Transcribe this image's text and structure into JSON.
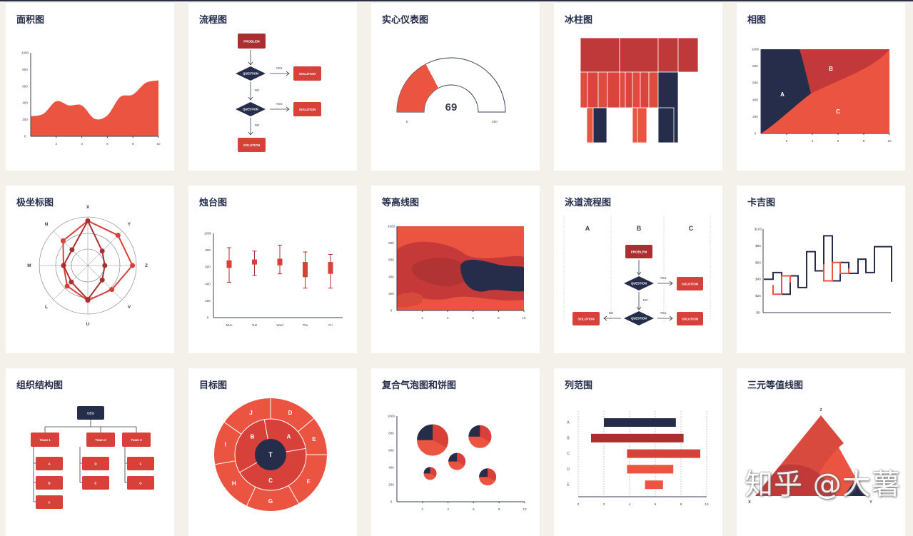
{
  "colors": {
    "red": "#ea5440",
    "dark_red": "#a92f31",
    "mid_red": "#d8403a",
    "navy": "#252d4a",
    "background": "#f4f0ea"
  },
  "cards": [
    {
      "title": "面积图",
      "chart": {
        "type": "area",
        "x_ticks": [
          "2",
          "4",
          "6",
          "8",
          "10"
        ],
        "y_ticks": [
          "0",
          "200",
          "400",
          "600",
          "800",
          "1000"
        ],
        "x": [
          0,
          1,
          2,
          3,
          4,
          5,
          6,
          7,
          8,
          9,
          10
        ],
        "values": [
          240,
          270,
          420,
          370,
          370,
          210,
          250,
          470,
          500,
          640,
          670
        ]
      }
    },
    {
      "title": "流程图",
      "nodes": {
        "problem": "PROBLEM",
        "question1": "QUESTION",
        "question2": "QUESTION",
        "solution1": "SOLUTION",
        "solution2": "SOLUTION",
        "solution3": "SOLUTION"
      },
      "edges": {
        "yes1": "YES",
        "no1": "NO",
        "yes2": "YES",
        "no2": "NO"
      }
    },
    {
      "title": "实心仪表图",
      "chart": {
        "type": "gauge",
        "value": "69",
        "min": "0",
        "max": "200"
      }
    },
    {
      "title": "冰柱图"
    },
    {
      "title": "相图",
      "chart": {
        "type": "phase",
        "x_ticks": [
          "2",
          "4",
          "6",
          "8",
          "10"
        ],
        "y_ticks": [
          "0",
          "200",
          "400",
          "600",
          "800",
          "1000"
        ],
        "regions": [
          "A",
          "B",
          "C"
        ]
      }
    },
    {
      "title": "极坐标图",
      "chart": {
        "type": "polar",
        "axes": [
          "X",
          "Y",
          "Z",
          "V",
          "U",
          "L",
          "M",
          "N"
        ],
        "series_outer": [
          0.92,
          0.88,
          0.92,
          0.7,
          0.72,
          0.6,
          0.5,
          0.72
        ],
        "series_inner": [
          0.92,
          0.42,
          0.35,
          0.42,
          0.7,
          0.48,
          0.5,
          0.46
        ]
      }
    },
    {
      "title": "烛台图",
      "chart": {
        "type": "candlestick",
        "categories": [
          "Mon",
          "Tue",
          "Wed",
          "Thu",
          "Fri"
        ],
        "y_ticks": [
          "0",
          "200",
          "400",
          "600",
          "800",
          "1000"
        ],
        "low": [
          420,
          500,
          520,
          350,
          350
        ],
        "open": [
          590,
          630,
          620,
          480,
          520
        ],
        "close": [
          680,
          690,
          700,
          660,
          660
        ],
        "high": [
          830,
          790,
          860,
          780,
          750
        ]
      }
    },
    {
      "title": "等高线图",
      "chart": {
        "type": "contour",
        "x_ticks": [
          "2",
          "4",
          "6",
          "8",
          "10"
        ],
        "y_ticks": [
          "0",
          "200",
          "400",
          "600",
          "800",
          "1000"
        ]
      }
    },
    {
      "title": "泳道流程图",
      "lanes": [
        "A",
        "B",
        "C"
      ],
      "nodes": {
        "problem": "PROBLEM",
        "question1": "QUESTION",
        "question2": "QUESTION",
        "solution1": "SOLUTION",
        "solution2": "SOLUTION",
        "solution3": "SOLUTION"
      },
      "edges": {
        "yes1": "YES",
        "no1": "NO",
        "yes2": "YES",
        "no2": "NO"
      }
    },
    {
      "title": "卡吉图",
      "chart": {
        "type": "kagi",
        "y_ticks": [
          "$0",
          "$20",
          "$40",
          "$60",
          "$80",
          "$100"
        ],
        "values": [
          40,
          48,
          22,
          44,
          30,
          73,
          50,
          92,
          38,
          60,
          47,
          64,
          48,
          79,
          37
        ]
      }
    },
    {
      "title": "组织结构图",
      "nodes": {
        "ceo": "CEO",
        "teams": [
          "Team 1",
          "Team 2",
          "Team 3"
        ],
        "members": [
          [
            "A",
            "B",
            "C"
          ],
          [
            "D",
            "E"
          ],
          [
            "F",
            "G"
          ]
        ]
      }
    },
    {
      "title": "目标图",
      "rings": {
        "center": "T",
        "middle": [
          "B",
          "A",
          "C"
        ],
        "outer": [
          "J",
          "D",
          "E",
          "F",
          "G",
          "H",
          "I"
        ]
      }
    },
    {
      "title": "复合气泡图和饼图",
      "chart": {
        "type": "bubble-pie",
        "x_ticks": [
          "2",
          "4",
          "6",
          "8",
          "10"
        ],
        "y_ticks": [
          "0",
          "200",
          "400",
          "600",
          "800",
          "1000"
        ],
        "bubbles": [
          {
            "x": 2.8,
            "y": 720,
            "size": 22
          },
          {
            "x": 6.5,
            "y": 760,
            "size": 16
          },
          {
            "x": 4.7,
            "y": 470,
            "size": 12
          },
          {
            "x": 2.6,
            "y": 330,
            "size": 9
          },
          {
            "x": 7.1,
            "y": 290,
            "size": 12
          }
        ]
      }
    },
    {
      "title": "列范围",
      "chart": {
        "type": "range-bar",
        "categories": [
          "A",
          "B",
          "C",
          "D",
          "E"
        ],
        "x_ticks": [
          "0",
          "2",
          "4",
          "6",
          "8",
          "10"
        ],
        "ranges": [
          [
            2,
            7.6
          ],
          [
            1,
            8.2
          ],
          [
            3.8,
            9.5
          ],
          [
            3.8,
            7.4
          ],
          [
            5.2,
            6.6
          ]
        ]
      }
    },
    {
      "title": "三元等值线图",
      "chart": {
        "type": "ternary",
        "vertices": [
          "Z",
          "X",
          "Y"
        ]
      }
    }
  ],
  "watermark": "知乎 @大薯"
}
